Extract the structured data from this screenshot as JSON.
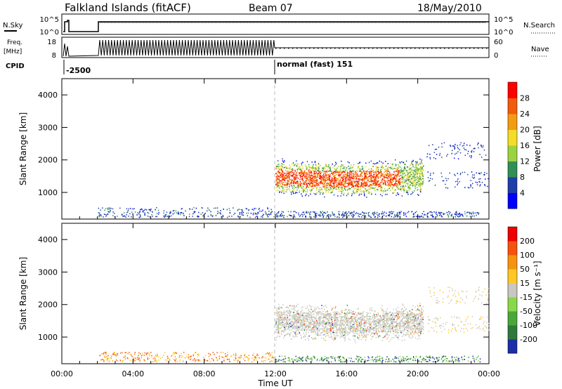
{
  "header": {
    "station": "Falkland Islands (fitACF)",
    "beam": "Beam 07",
    "date": "18/May/2010"
  },
  "top_panels": {
    "nsky_label": "N.Sky",
    "nsearch_label": "N.Search",
    "nsky_ticks": [
      "10^5",
      "10^0"
    ],
    "nsearch_ticks": [
      "10^5",
      "10^0"
    ],
    "freq_label_1": "Freq.",
    "freq_label_2": "[MHz]",
    "freq_ticks": [
      "18",
      "8"
    ],
    "nave_label": "Nave",
    "nave_ticks": [
      "60",
      "0"
    ],
    "cpid_label": "CPID",
    "cpid_1": "-2500",
    "cpid_2": "normal (fast) 151"
  },
  "chart_data": [
    {
      "type": "heatmap",
      "name": "power",
      "ylabel": "Slant Range [km]",
      "yticks": [
        "4000",
        "3000",
        "2000",
        "1000"
      ],
      "ylim": [
        180,
        4500
      ],
      "xlim_hours": [
        0,
        24
      ],
      "colorbar_label": "Power [dB]",
      "colorbar_ticks": [
        "28",
        "24",
        "20",
        "16",
        "12",
        "8",
        "4"
      ],
      "colors": [
        "#0000ff",
        "#1e3ea8",
        "#2f8f55",
        "#9cd241",
        "#f5dc28",
        "#f39b12",
        "#f25a0c",
        "#ff0000"
      ]
    },
    {
      "type": "heatmap",
      "name": "velocity",
      "ylabel": "Slant Range [km]",
      "yticks": [
        "4000",
        "3000",
        "2000",
        "1000"
      ],
      "ylim": [
        180,
        4500
      ],
      "xlim_hours": [
        0,
        24
      ],
      "colorbar_label": "Velocity [m s⁻¹]",
      "colorbar_ticks": [
        "200",
        "100",
        "50",
        "15",
        "-15",
        "-50",
        "-100",
        "-200"
      ],
      "colors": [
        "#1a2ea8",
        "#2f7a3a",
        "#49a73b",
        "#88d84a",
        "#c8c8c0",
        "#ffc824",
        "#f5930f",
        "#f5530c",
        "#f00000"
      ]
    }
  ],
  "xaxis": {
    "label": "Time UT",
    "ticks": [
      "00:00",
      "04:00",
      "08:00",
      "12:00",
      "16:00",
      "20:00",
      "00:00"
    ]
  }
}
